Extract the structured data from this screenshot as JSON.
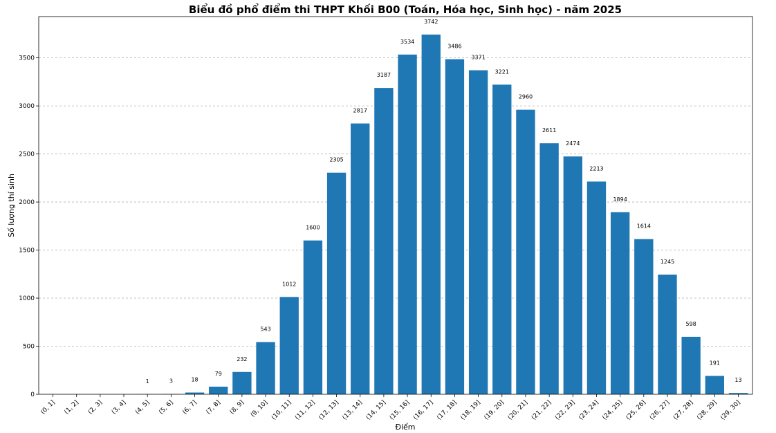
{
  "chart_data": {
    "type": "bar",
    "title": "Biểu đồ phổ điểm thi THPT Khối B00 (Toán, Hóa học, Sinh học) - năm 2025",
    "xlabel": "Điểm",
    "ylabel": "Số lượng thí sinh",
    "categories": [
      "(0, 1]",
      "(1, 2]",
      "(2, 3]",
      "(3, 4]",
      "(4, 5]",
      "(5, 6]",
      "(6, 7]",
      "(7, 8]",
      "(8, 9]",
      "(9, 10]",
      "(10, 11]",
      "(11, 12]",
      "(12, 13]",
      "(13, 14]",
      "(14, 15]",
      "(15, 16]",
      "(16, 17]",
      "(17, 18]",
      "(18, 19]",
      "(19, 20]",
      "(20, 21]",
      "(21, 22]",
      "(22, 23]",
      "(23, 24]",
      "(24, 25]",
      "(25, 26]",
      "(26, 27]",
      "(27, 28]",
      "(28, 29]",
      "(29, 30]"
    ],
    "values": [
      0,
      0,
      0,
      0,
      1,
      3,
      18,
      79,
      232,
      543,
      1012,
      1600,
      2305,
      2817,
      3187,
      3534,
      3742,
      3486,
      3371,
      3221,
      2960,
      2611,
      2474,
      2213,
      1894,
      1614,
      1245,
      598,
      191,
      13
    ],
    "data_labels": [
      "",
      "",
      "",
      "",
      "1",
      "3",
      "18",
      "79",
      "232",
      "543",
      "1012",
      "1600",
      "2305",
      "2817",
      "3187",
      "3534",
      "3742",
      "3486",
      "3371",
      "3221",
      "2960",
      "2611",
      "2474",
      "2213",
      "1894",
      "1614",
      "1245",
      "598",
      "191",
      "13"
    ],
    "yticks": [
      0,
      500,
      1000,
      1500,
      2000,
      2500,
      3000,
      3500
    ],
    "ylim": [
      0,
      3929
    ],
    "grid": "y-dashed",
    "bar_color": "#1f77b4"
  }
}
